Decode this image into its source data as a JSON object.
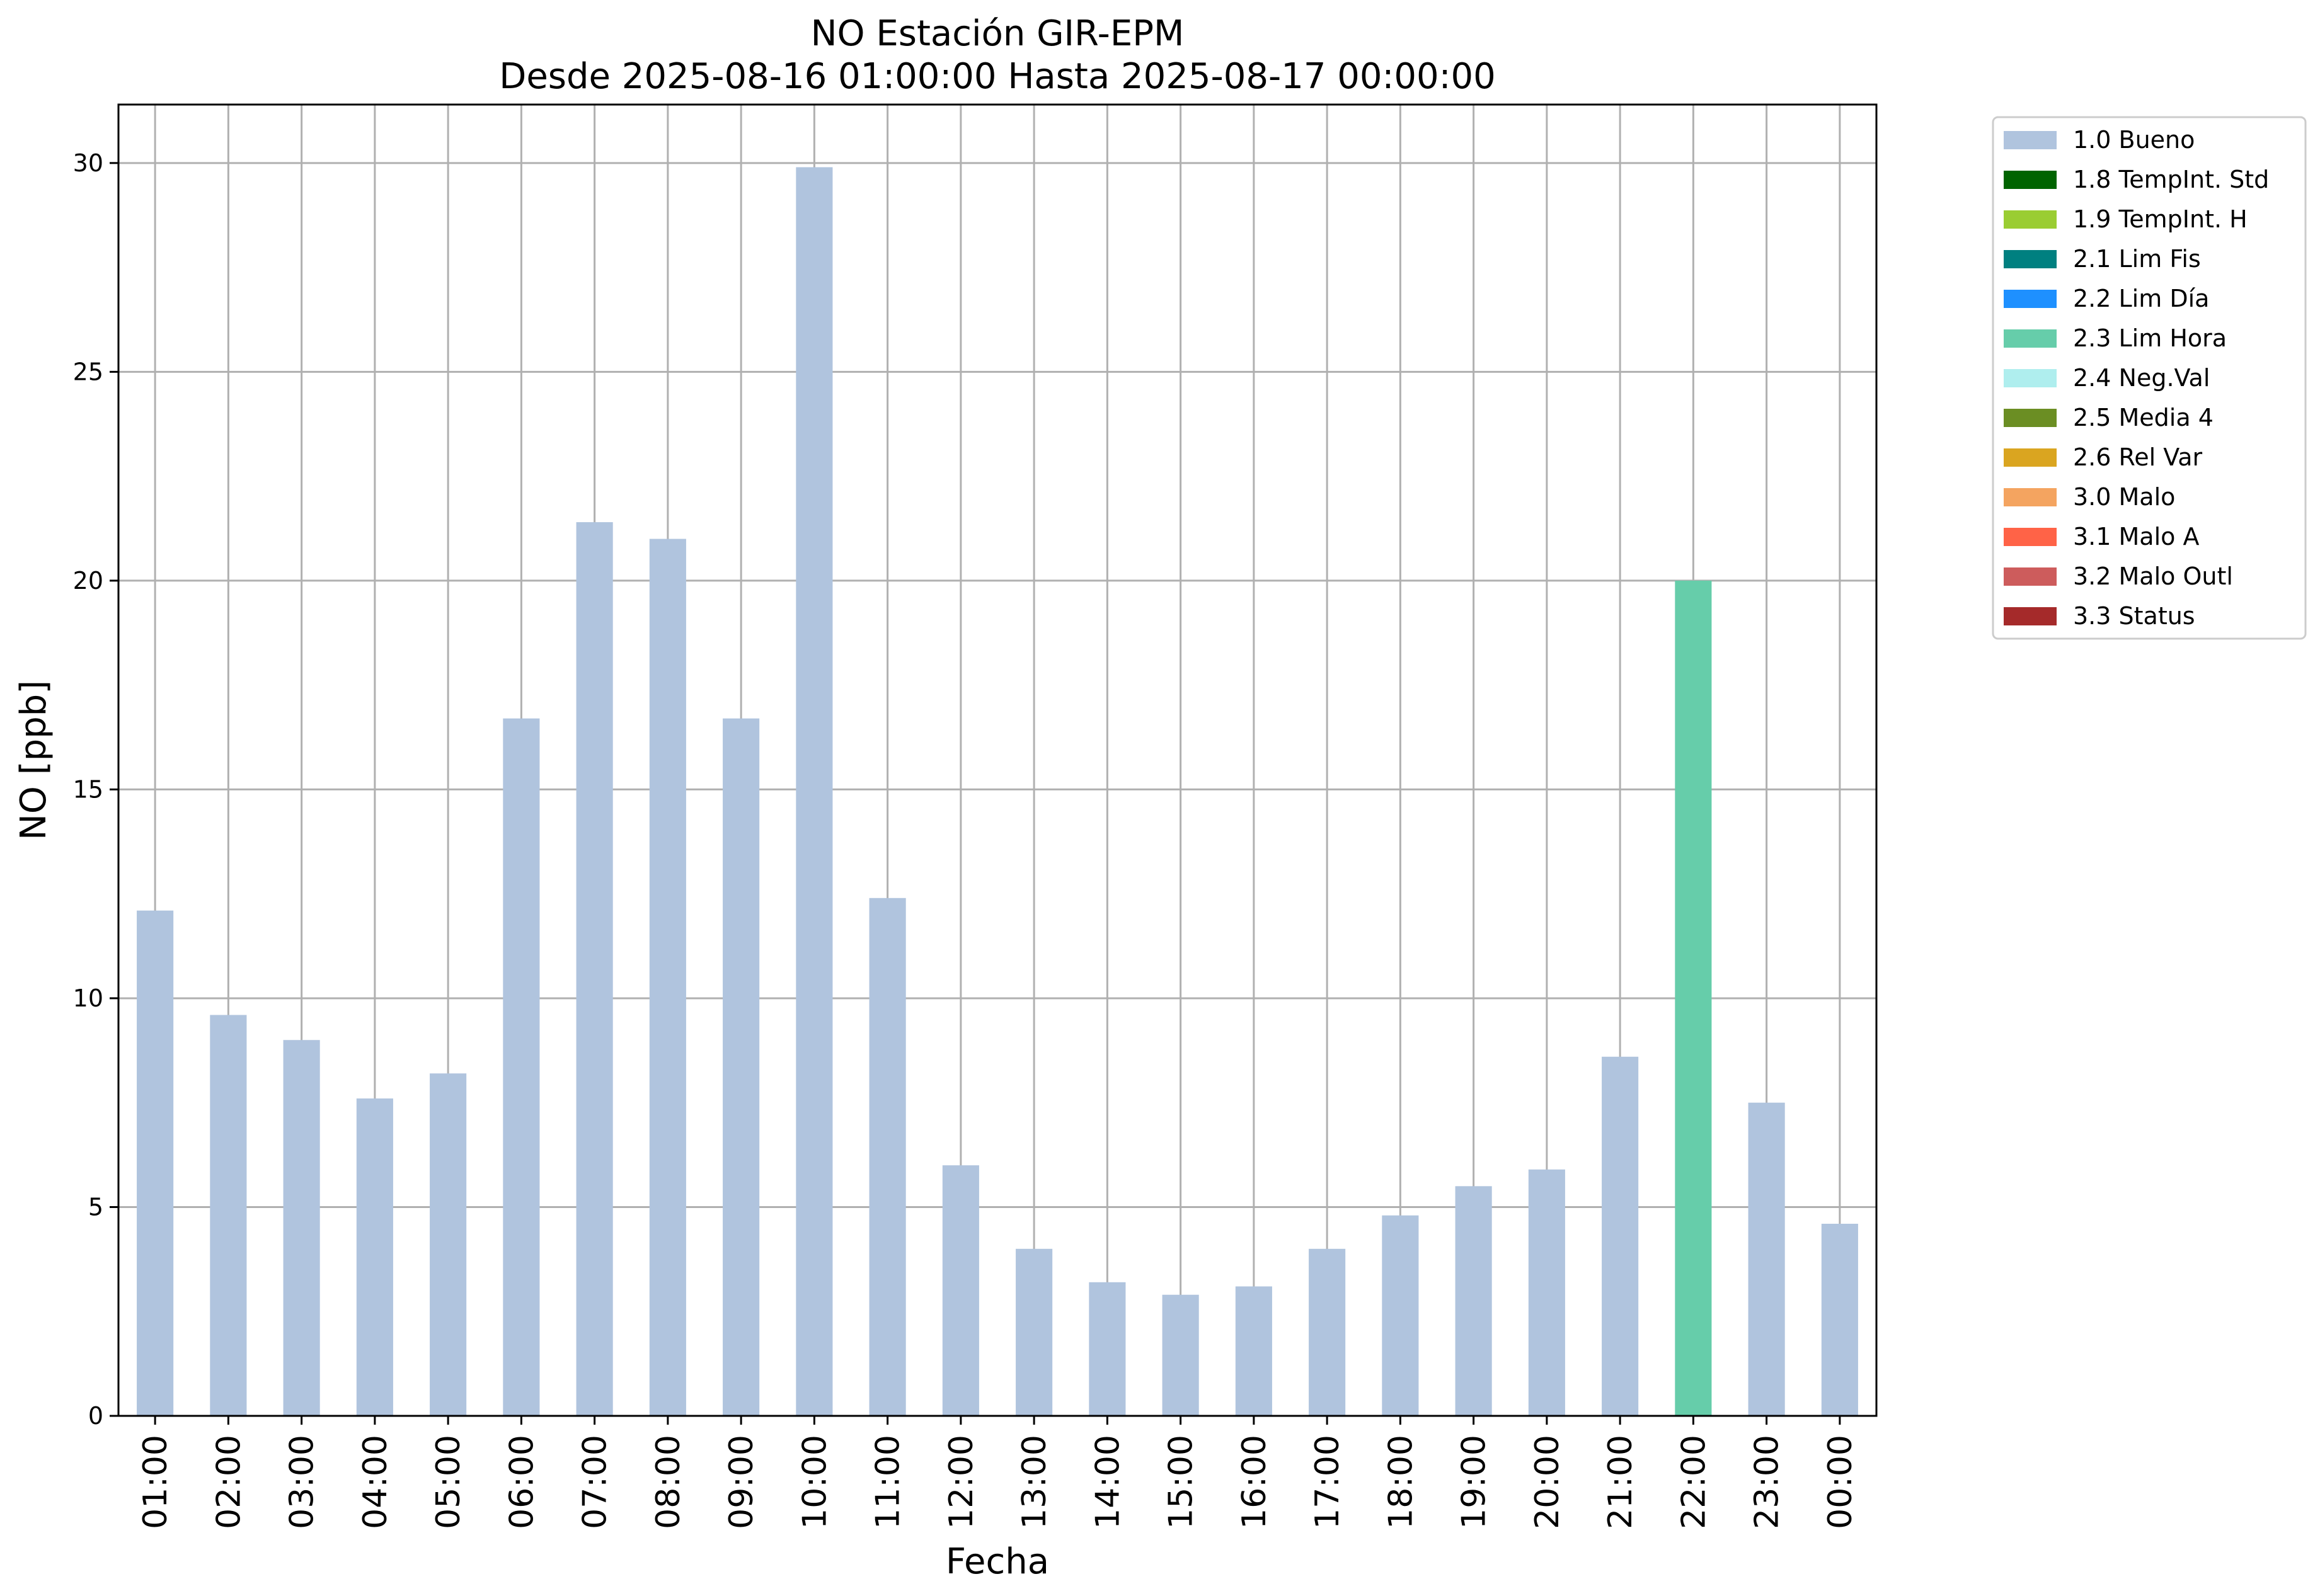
{
  "chart_data": {
    "type": "bar",
    "title": "NO Estación GIR-EPM",
    "subtitle": "Desde 2025-08-16 01:00:00 Hasta 2025-08-17 00:00:00",
    "xlabel": "Fecha",
    "ylabel": "NO [ppb]",
    "ylim": [
      0,
      31.4
    ],
    "yticks": [
      0,
      5,
      10,
      15,
      20,
      25,
      30
    ],
    "grid": true,
    "legend_position": "outside top-right",
    "categories": [
      "01:00",
      "02:00",
      "03:00",
      "04:00",
      "05:00",
      "06:00",
      "07:00",
      "08:00",
      "09:00",
      "10:00",
      "11:00",
      "12:00",
      "13:00",
      "14:00",
      "15:00",
      "16:00",
      "17:00",
      "18:00",
      "19:00",
      "20:00",
      "21:00",
      "22:00",
      "23:00",
      "00:00"
    ],
    "values": [
      12.1,
      9.6,
      9.0,
      7.6,
      8.2,
      16.7,
      21.4,
      21.0,
      16.7,
      29.9,
      12.4,
      6.0,
      4.0,
      3.2,
      2.9,
      3.1,
      4.0,
      4.8,
      5.5,
      5.9,
      8.6,
      20.0,
      7.5,
      4.6
    ],
    "flags": [
      "1.0 Bueno",
      "1.0 Bueno",
      "1.0 Bueno",
      "1.0 Bueno",
      "1.0 Bueno",
      "1.0 Bueno",
      "1.0 Bueno",
      "1.0 Bueno",
      "1.0 Bueno",
      "1.0 Bueno",
      "1.0 Bueno",
      "1.0 Bueno",
      "1.0 Bueno",
      "1.0 Bueno",
      "1.0 Bueno",
      "1.0 Bueno",
      "1.0 Bueno",
      "1.0 Bueno",
      "1.0 Bueno",
      "1.0 Bueno",
      "1.0 Bueno",
      "2.3 Lim Hora",
      "1.0 Bueno",
      "1.0 Bueno"
    ],
    "legend": [
      {
        "label": "1.0 Bueno",
        "color": "#b0c4de"
      },
      {
        "label": "1.8 TempInt. Std",
        "color": "#006400"
      },
      {
        "label": "1.9 TempInt. H",
        "color": "#9acd32"
      },
      {
        "label": "2.1 Lim Fis",
        "color": "#008080"
      },
      {
        "label": "2.2 Lim Día",
        "color": "#1e90ff"
      },
      {
        "label": "2.3 Lim Hora",
        "color": "#66cdaa"
      },
      {
        "label": "2.4 Neg.Val",
        "color": "#afeeee"
      },
      {
        "label": "2.5 Media 4",
        "color": "#6b8e23"
      },
      {
        "label": "2.6 Rel Var",
        "color": "#daa520"
      },
      {
        "label": "3.0 Malo",
        "color": "#f4a460"
      },
      {
        "label": "3.1 Malo A",
        "color": "#ff6347"
      },
      {
        "label": "3.2 Malo Outl",
        "color": "#cd5c5c"
      },
      {
        "label": "3.3 Status",
        "color": "#a52a2a"
      }
    ]
  }
}
